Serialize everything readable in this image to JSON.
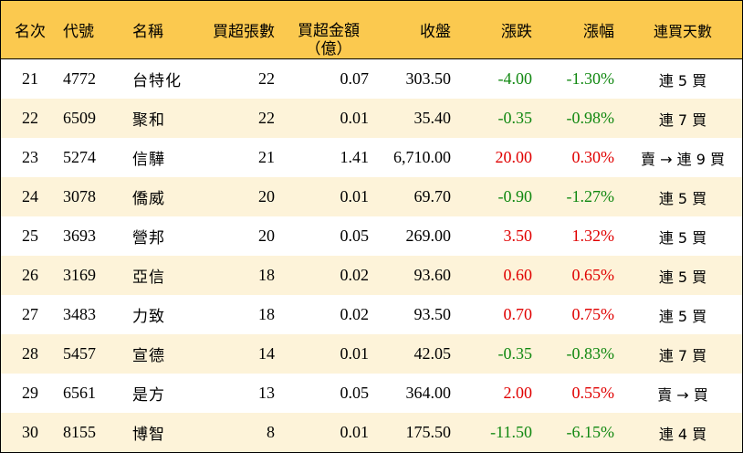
{
  "headers": {
    "rank": "名次",
    "code": "代號",
    "name": "名稱",
    "shares": "買超張數",
    "amount_line1": "買超金額",
    "amount_line2": "（億）",
    "close": "收盤",
    "change": "漲跌",
    "pct": "漲幅",
    "days": "連買天數"
  },
  "colors": {
    "header_bg": "#fbc94f",
    "alt_row_bg": "#fdf3d9",
    "positive": "#e00000",
    "negative": "#118811"
  },
  "rows": [
    {
      "rank": "21",
      "code": "4772",
      "name": "台特化",
      "shares": "22",
      "amount": "0.07",
      "close": "303.50",
      "change": "-4.00",
      "pct": "-1.30%",
      "days": "連 5 買",
      "dir": "neg"
    },
    {
      "rank": "22",
      "code": "6509",
      "name": "聚和",
      "shares": "22",
      "amount": "0.01",
      "close": "35.40",
      "change": "-0.35",
      "pct": "-0.98%",
      "days": "連 7 買",
      "dir": "neg"
    },
    {
      "rank": "23",
      "code": "5274",
      "name": "信驊",
      "shares": "21",
      "amount": "1.41",
      "close": "6,710.00",
      "change": "20.00",
      "pct": "0.30%",
      "days": "賣 → 連 9 買",
      "dir": "pos"
    },
    {
      "rank": "24",
      "code": "3078",
      "name": "僑威",
      "shares": "20",
      "amount": "0.01",
      "close": "69.70",
      "change": "-0.90",
      "pct": "-1.27%",
      "days": "連 5 買",
      "dir": "neg"
    },
    {
      "rank": "25",
      "code": "3693",
      "name": "營邦",
      "shares": "20",
      "amount": "0.05",
      "close": "269.00",
      "change": "3.50",
      "pct": "1.32%",
      "days": "連 5 買",
      "dir": "pos"
    },
    {
      "rank": "26",
      "code": "3169",
      "name": "亞信",
      "shares": "18",
      "amount": "0.02",
      "close": "93.60",
      "change": "0.60",
      "pct": "0.65%",
      "days": "連 5 買",
      "dir": "pos"
    },
    {
      "rank": "27",
      "code": "3483",
      "name": "力致",
      "shares": "18",
      "amount": "0.02",
      "close": "93.50",
      "change": "0.70",
      "pct": "0.75%",
      "days": "連 5 買",
      "dir": "pos"
    },
    {
      "rank": "28",
      "code": "5457",
      "name": "宣德",
      "shares": "14",
      "amount": "0.01",
      "close": "42.05",
      "change": "-0.35",
      "pct": "-0.83%",
      "days": "連 7 買",
      "dir": "neg"
    },
    {
      "rank": "29",
      "code": "6561",
      "name": "是方",
      "shares": "13",
      "amount": "0.05",
      "close": "364.00",
      "change": "2.00",
      "pct": "0.55%",
      "days": "賣 → 買",
      "dir": "pos"
    },
    {
      "rank": "30",
      "code": "8155",
      "name": "博智",
      "shares": "8",
      "amount": "0.01",
      "close": "175.50",
      "change": "-11.50",
      "pct": "-6.15%",
      "days": "連 4 買",
      "dir": "neg"
    }
  ]
}
